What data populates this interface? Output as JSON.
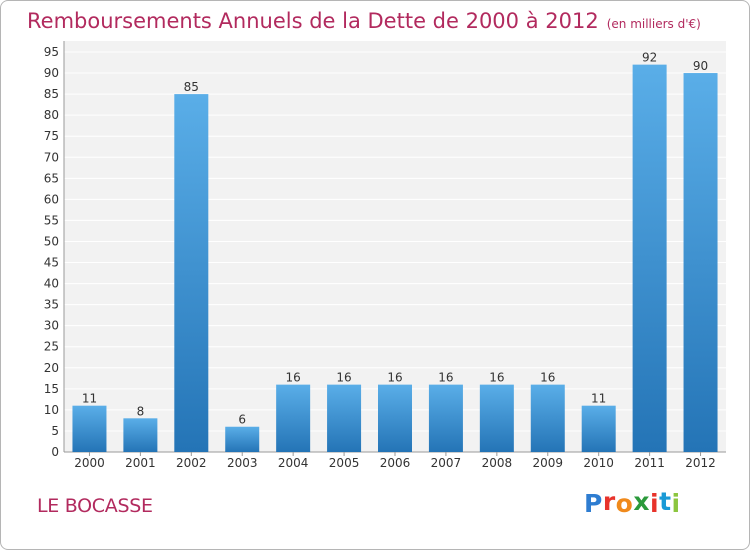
{
  "title": "Remboursements Annuels de la Dette de 2000 à 2012",
  "unit": "(en milliers d'€)",
  "place": "LE BOCASSE",
  "logo": {
    "text": "Proxiti",
    "letter_colors": [
      "#2e7dd1",
      "#e8332b",
      "#f08a1c",
      "#2b9a3b",
      "#e8332b",
      "#1a9ad6",
      "#8cc63f"
    ]
  },
  "colors": {
    "title": "#b22a5e",
    "bar_light": "#5aaee8",
    "bar_dark": "#2474b6",
    "grid": "#ffffff",
    "panel": "#f2f2f2",
    "axis_text": "#333333"
  },
  "chart_data": {
    "type": "bar",
    "title": "Remboursements Annuels de la Dette de 2000 à 2012",
    "subtitle": "(en milliers d'€)",
    "xlabel": "",
    "ylabel": "",
    "categories": [
      "2000",
      "2001",
      "2002",
      "2003",
      "2004",
      "2005",
      "2006",
      "2007",
      "2008",
      "2009",
      "2010",
      "2011",
      "2012"
    ],
    "values": [
      11,
      8,
      85,
      6,
      16,
      16,
      16,
      16,
      16,
      16,
      11,
      92,
      90
    ],
    "ylim": [
      0,
      95
    ],
    "yticks": [
      0,
      5,
      10,
      15,
      20,
      25,
      30,
      35,
      40,
      45,
      50,
      55,
      60,
      65,
      70,
      75,
      80,
      85,
      90,
      95
    ],
    "grid": true,
    "data_labels": true
  }
}
